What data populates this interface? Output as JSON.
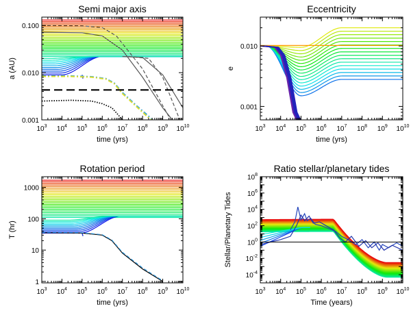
{
  "chart_data": [
    {
      "id": "a",
      "type": "line",
      "title": "Semi major axis",
      "xlabel": "time (yrs)",
      "ylabel": "a (AU)",
      "xscale": "log",
      "yscale": "log",
      "xlim": [
        1000,
        10000000000
      ],
      "ylim": [
        0.001,
        0.15
      ],
      "xticks": [
        {
          "base": "10",
          "exp": "3"
        },
        {
          "base": "10",
          "exp": "4"
        },
        {
          "base": "10",
          "exp": "5"
        },
        {
          "base": "10",
          "exp": "6"
        },
        {
          "base": "10",
          "exp": "7"
        },
        {
          "base": "10",
          "exp": "8"
        },
        {
          "base": "10",
          "exp": "9"
        },
        {
          "base": "10",
          "exp": "10"
        }
      ],
      "yticks": [
        {
          "value": 0.001,
          "label": "0.001"
        },
        {
          "value": 0.01,
          "label": "0.010"
        },
        {
          "value": 0.1,
          "label": "0.100"
        }
      ],
      "grid": false,
      "series": [
        {
          "style": "rainbow-flat",
          "count": 24,
          "y_range": [
            0.022,
            0.13
          ],
          "x_range": [
            1000,
            10000000000
          ]
        },
        {
          "style": "rainbow-rise",
          "count": 10,
          "y_start": [
            0.009,
            0.02
          ],
          "y_end": 0.022,
          "x_merge": 1000000
        },
        {
          "style": "solid",
          "color": "#555555",
          "points": [
            [
              1000,
              0.072
            ],
            [
              100000,
              0.07
            ],
            [
              1000000,
              0.06
            ],
            [
              10000000,
              0.03
            ],
            [
              100000000,
              0.008
            ],
            [
              1000000000,
              0.0018
            ],
            [
              3000000000,
              0.001
            ]
          ]
        },
        {
          "style": "dashed",
          "color": "#555555",
          "points": [
            [
              1000,
              0.1
            ],
            [
              100000,
              0.098
            ],
            [
              1000000,
              0.09
            ],
            [
              5000000,
              0.06
            ],
            [
              100000000,
              0.012
            ],
            [
              1000000000,
              0.002
            ],
            [
              2500000000,
              0.001
            ]
          ]
        },
        {
          "style": "solid",
          "color": "#555555",
          "points": [
            [
              10000000,
              0.022
            ],
            [
              100000000,
              0.021
            ],
            [
              1000000000,
              0.009
            ],
            [
              10000000000,
              0.0018
            ]
          ]
        },
        {
          "style": "dashed",
          "color": "#555555",
          "points": [
            [
              20000000,
              0.022
            ],
            [
              200000000,
              0.02
            ],
            [
              1000000000,
              0.008
            ],
            [
              7000000000,
              0.001
            ]
          ]
        },
        {
          "style": "dash-dot",
          "color": "#44aacc",
          "points": [
            [
              1000,
              0.0085
            ],
            [
              30000,
              0.0085
            ],
            [
              300000,
              0.0082
            ],
            [
              1500000,
              0.0075
            ],
            [
              4000000,
              0.006
            ],
            [
              10000000,
              0.0038
            ],
            [
              50000000,
              0.002
            ],
            [
              200000000,
              0.0012
            ],
            [
              300000000,
              0.001
            ]
          ]
        },
        {
          "style": "dash-dot",
          "color": "#dddd33",
          "points": [
            [
              1000,
              0.0083
            ],
            [
              30000,
              0.0083
            ],
            [
              300000,
              0.008
            ],
            [
              1500000,
              0.0073
            ],
            [
              4000000,
              0.0058
            ],
            [
              10000000,
              0.0036
            ],
            [
              50000000,
              0.0019
            ],
            [
              200000000,
              0.0011
            ],
            [
              280000000,
              0.001
            ]
          ]
        },
        {
          "style": "long-dashed",
          "color": "#000000",
          "points": [
            [
              1000,
              0.0043
            ],
            [
              10000000000,
              0.0043
            ]
          ]
        },
        {
          "style": "dotted",
          "color": "#000000",
          "points": [
            [
              1000,
              0.0025
            ],
            [
              30000,
              0.0026
            ],
            [
              300000,
              0.0025
            ],
            [
              1000000,
              0.0022
            ],
            [
              3000000,
              0.0018
            ],
            [
              7000000,
              0.0012
            ],
            [
              10000000,
              0.001
            ]
          ]
        }
      ]
    },
    {
      "id": "e",
      "type": "line",
      "title": "Eccentricity",
      "xlabel": "time (yrs)",
      "ylabel": "e",
      "xscale": "log",
      "yscale": "log",
      "xlim": [
        1000,
        10000000000
      ],
      "ylim": [
        0.0006,
        0.03
      ],
      "xticks": [
        {
          "base": "10",
          "exp": "3"
        },
        {
          "base": "10",
          "exp": "4"
        },
        {
          "base": "10",
          "exp": "5"
        },
        {
          "base": "10",
          "exp": "6"
        },
        {
          "base": "10",
          "exp": "7"
        },
        {
          "base": "10",
          "exp": "8"
        },
        {
          "base": "10",
          "exp": "9"
        },
        {
          "base": "10",
          "exp": "10"
        }
      ],
      "yticks": [
        {
          "value": 0.001,
          "label": "0.001"
        },
        {
          "value": 0.01,
          "label": "0.010"
        }
      ],
      "grid": false,
      "series": [
        {
          "style": "rainbow-ecc",
          "count": 16,
          "y_start": 0.01,
          "y_end_range": [
            0.0028,
            0.02
          ],
          "dip_min_range": [
            0.0015,
            0.0095
          ]
        },
        {
          "style": "plunge",
          "color": "#2222bb",
          "count": 6,
          "points": [
            [
              1000,
              0.01
            ],
            [
              5000,
              0.0095
            ],
            [
              10000,
              0.007
            ],
            [
              20000,
              0.003
            ],
            [
              40000,
              0.0008
            ],
            [
              60000,
              0.0006
            ]
          ]
        }
      ]
    },
    {
      "id": "T",
      "type": "line",
      "title": "Rotation period",
      "xlabel": "time (yrs)",
      "ylabel": "T (hr)",
      "xscale": "log",
      "yscale": "log",
      "xlim": [
        1000,
        10000000000
      ],
      "ylim": [
        0.9,
        2200
      ],
      "xticks": [
        {
          "base": "10",
          "exp": "3"
        },
        {
          "base": "10",
          "exp": "4"
        },
        {
          "base": "10",
          "exp": "5"
        },
        {
          "base": "10",
          "exp": "6"
        },
        {
          "base": "10",
          "exp": "7"
        },
        {
          "base": "10",
          "exp": "8"
        },
        {
          "base": "10",
          "exp": "9"
        },
        {
          "base": "10",
          "exp": "10"
        }
      ],
      "yticks": [
        {
          "value": 1,
          "label": "1"
        },
        {
          "value": 10,
          "label": "10"
        },
        {
          "value": 100,
          "label": "100"
        },
        {
          "value": 1000,
          "label": "1000"
        }
      ],
      "grid": false,
      "series": [
        {
          "style": "rainbow-flat",
          "count": 24,
          "y_range": [
            110,
            1700
          ],
          "x_range": [
            1000,
            10000000000
          ]
        },
        {
          "style": "rainbow-rise",
          "count": 10,
          "y_start": [
            35,
            90
          ],
          "y_end": 120,
          "x_merge": 8000000
        },
        {
          "style": "solid",
          "color": "#000000",
          "points": [
            [
              1000,
              36
            ],
            [
              100000,
              35
            ],
            [
              1000000,
              30
            ],
            [
              3000000,
              20
            ],
            [
              10000000,
              8
            ],
            [
              100000000,
              2.5
            ],
            [
              1000000000,
              1.0
            ]
          ]
        },
        {
          "style": "dashed",
          "color": "#3399dd",
          "points": [
            [
              1000,
              37
            ],
            [
              100000,
              36
            ],
            [
              1000000,
              31
            ],
            [
              3000000,
              21
            ],
            [
              10000000,
              8.5
            ],
            [
              100000000,
              2.7
            ],
            [
              1000000000,
              1.05
            ]
          ]
        }
      ]
    },
    {
      "id": "ratio",
      "type": "line",
      "title": "Ratio stellar/planetary tides",
      "xlabel": "Time (years)",
      "ylabel": "Stellar/Planetary Tides",
      "xscale": "log",
      "yscale": "log",
      "xlim": [
        1000,
        10000000000
      ],
      "ylim": [
        1e-05,
        100000000
      ],
      "xticks": [
        {
          "base": "10",
          "exp": "3"
        },
        {
          "base": "10",
          "exp": "4"
        },
        {
          "base": "10",
          "exp": "5"
        },
        {
          "base": "10",
          "exp": "6"
        },
        {
          "base": "10",
          "exp": "7"
        },
        {
          "base": "10",
          "exp": "8"
        },
        {
          "base": "10",
          "exp": "9"
        },
        {
          "base": "10",
          "exp": "10"
        }
      ],
      "yticks": [
        {
          "value": 0.0001,
          "base": "10",
          "exp": "-4"
        },
        {
          "value": 0.01,
          "base": "10",
          "exp": "-2"
        },
        {
          "value": 1,
          "base": "10",
          "exp": "0"
        },
        {
          "value": 100,
          "base": "10",
          "exp": "2"
        },
        {
          "value": 10000,
          "base": "10",
          "exp": "4"
        },
        {
          "value": 1000000,
          "base": "10",
          "exp": "6"
        },
        {
          "value": 100000000,
          "base": "10",
          "exp": "8"
        }
      ],
      "grid": false,
      "reference_line": 1,
      "series": [
        {
          "style": "rainbow-ratio",
          "count": 26,
          "plateau_range": [
            20,
            600
          ],
          "end_range": [
            5e-05,
            0.003
          ]
        },
        {
          "style": "noisy",
          "color": "#2244bb",
          "points": [
            [
              30000,
              30
            ],
            [
              50000,
              300
            ],
            [
              70000,
              20000
            ],
            [
              100000,
              500
            ],
            [
              150000,
              3000
            ],
            [
              200000,
              400
            ],
            [
              300000,
              800
            ],
            [
              500000,
              150
            ],
            [
              1000000,
              100
            ],
            [
              2000000,
              50
            ],
            [
              5000000,
              20
            ],
            [
              10000000,
              5
            ],
            [
              20000000,
              2
            ],
            [
              50000000,
              0.5
            ],
            [
              100000000,
              2
            ],
            [
              200000000,
              0.2
            ],
            [
              400000000,
              1
            ],
            [
              700000000,
              0.1
            ],
            [
              1000000000,
              0.5
            ],
            [
              2000000000,
              0.2
            ],
            [
              5000000000,
              0.8
            ],
            [
              10000000000,
              0.3
            ]
          ]
        },
        {
          "style": "noisy",
          "color": "#2233aa",
          "points": [
            [
              1000,
              0.5
            ],
            [
              10000,
              2
            ],
            [
              30000,
              5
            ],
            [
              60000,
              100
            ],
            [
              100000,
              2000
            ],
            [
              150000,
              400
            ],
            [
              250000,
              1500
            ],
            [
              400000,
              200
            ],
            [
              800000,
              300
            ],
            [
              2000000,
              80
            ],
            [
              4000000,
              30
            ],
            [
              8000000,
              3
            ],
            [
              15000000,
              1
            ],
            [
              30000000,
              5
            ],
            [
              70000000,
              0.3
            ],
            [
              150000000,
              1.5
            ],
            [
              300000000,
              0.2
            ],
            [
              600000000,
              0.8
            ],
            [
              1200000000,
              0.1
            ],
            [
              3000000000,
              0.4
            ],
            [
              10000000000,
              0.1
            ]
          ]
        }
      ]
    }
  ]
}
